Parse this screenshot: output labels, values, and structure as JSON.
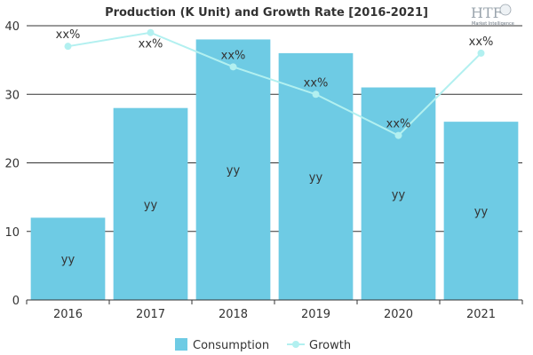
{
  "logo": {
    "brand": "HTF",
    "tagline": "Market Intelligence"
  },
  "chart_data": {
    "type": "bar",
    "title": "Production (K Unit) and Growth Rate [2016-2021]",
    "categories": [
      "2016",
      "2017",
      "2018",
      "2019",
      "2020",
      "2021"
    ],
    "ylim": [
      0,
      40
    ],
    "yticks": [
      "0",
      "10",
      "20",
      "30",
      "40"
    ],
    "grid": true,
    "legend_position": "bottom",
    "series": [
      {
        "name": "Consumption",
        "type": "bar",
        "color": "#6ecbe4",
        "values": [
          12,
          28,
          38,
          36,
          31,
          26
        ],
        "labels": [
          "yy",
          "yy",
          "yy",
          "yy",
          "yy",
          "yy"
        ]
      },
      {
        "name": "Growth",
        "type": "line",
        "color": "#b2f0f0",
        "values": [
          37,
          39,
          34,
          30,
          24,
          36
        ],
        "labels": [
          "xx%",
          "xx%",
          "xx%",
          "xx%",
          "xx%",
          "xx%"
        ]
      }
    ]
  }
}
